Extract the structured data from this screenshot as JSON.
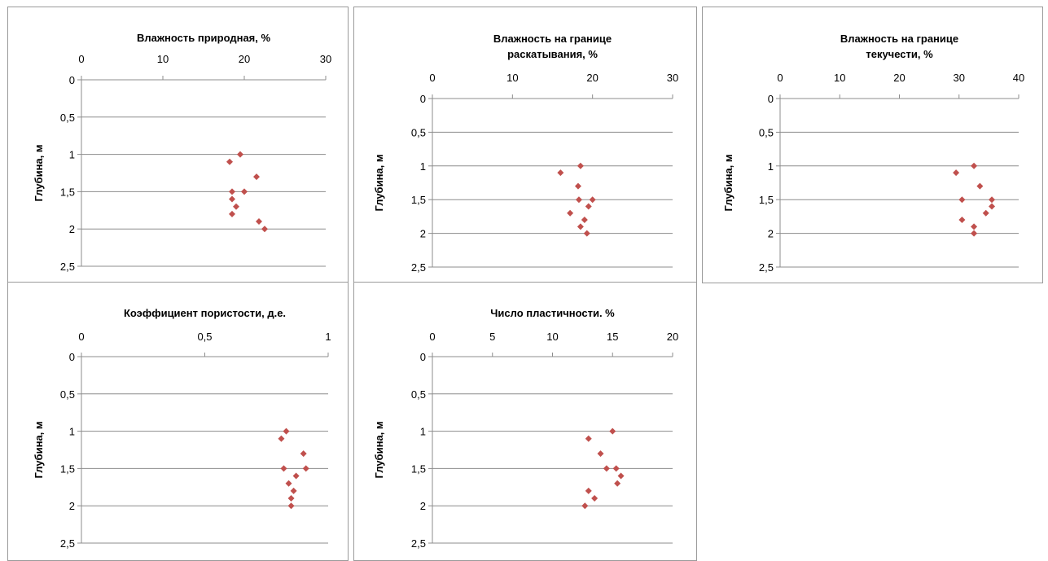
{
  "chart_data": [
    {
      "type": "scatter",
      "title": [
        "Влажность природная, %"
      ],
      "ylabel": "Глубина, м",
      "xlim": [
        0,
        30
      ],
      "xticks": [
        "0",
        "10",
        "20",
        "30"
      ],
      "ylim": [
        0,
        2.5
      ],
      "yticks": [
        "0",
        "0,5",
        "1",
        "1,5",
        "2",
        "2,5"
      ],
      "y_inverted": true,
      "x_axis_position": "top",
      "grid": "horizontal",
      "marker_color": "#c0504d",
      "points": [
        {
          "x": 19.5,
          "y": 1.0
        },
        {
          "x": 18.2,
          "y": 1.1
        },
        {
          "x": 21.5,
          "y": 1.3
        },
        {
          "x": 18.5,
          "y": 1.5
        },
        {
          "x": 20.0,
          "y": 1.5
        },
        {
          "x": 18.5,
          "y": 1.6
        },
        {
          "x": 19.0,
          "y": 1.7
        },
        {
          "x": 18.5,
          "y": 1.8
        },
        {
          "x": 21.8,
          "y": 1.9
        },
        {
          "x": 22.5,
          "y": 2.0
        }
      ]
    },
    {
      "type": "scatter",
      "title": [
        "Влажность на границе",
        "раскатывания,  %"
      ],
      "ylabel": "Глубина, м",
      "xlim": [
        0,
        30
      ],
      "xticks": [
        "0",
        "10",
        "20",
        "30"
      ],
      "ylim": [
        0,
        2.5
      ],
      "yticks": [
        "0",
        "0,5",
        "1",
        "1,5",
        "2",
        "2,5"
      ],
      "y_inverted": true,
      "x_axis_position": "top",
      "grid": "horizontal",
      "marker_color": "#c0504d",
      "points": [
        {
          "x": 18.5,
          "y": 1.0
        },
        {
          "x": 16.0,
          "y": 1.1
        },
        {
          "x": 18.2,
          "y": 1.3
        },
        {
          "x": 18.3,
          "y": 1.5
        },
        {
          "x": 20.0,
          "y": 1.5
        },
        {
          "x": 19.5,
          "y": 1.6
        },
        {
          "x": 17.2,
          "y": 1.7
        },
        {
          "x": 19.0,
          "y": 1.8
        },
        {
          "x": 18.5,
          "y": 1.9
        },
        {
          "x": 19.3,
          "y": 2.0
        }
      ]
    },
    {
      "type": "scatter",
      "title": [
        "Влажность на границе",
        "текучести, %"
      ],
      "ylabel": "Глубина, м",
      "xlim": [
        0,
        40
      ],
      "xticks": [
        "0",
        "10",
        "20",
        "30",
        "40"
      ],
      "ylim": [
        0,
        2.5
      ],
      "yticks": [
        "0",
        "0,5",
        "1",
        "1,5",
        "2",
        "2,5"
      ],
      "y_inverted": true,
      "x_axis_position": "top",
      "grid": "horizontal",
      "marker_color": "#c0504d",
      "points": [
        {
          "x": 32.5,
          "y": 1.0
        },
        {
          "x": 29.5,
          "y": 1.1
        },
        {
          "x": 33.5,
          "y": 1.3
        },
        {
          "x": 30.5,
          "y": 1.5
        },
        {
          "x": 35.5,
          "y": 1.5
        },
        {
          "x": 35.5,
          "y": 1.6
        },
        {
          "x": 34.5,
          "y": 1.7
        },
        {
          "x": 30.5,
          "y": 1.8
        },
        {
          "x": 32.5,
          "y": 1.9
        },
        {
          "x": 32.5,
          "y": 2.0
        }
      ]
    },
    {
      "type": "scatter",
      "title": [
        "Коэффициент пористости,  д.е."
      ],
      "ylabel": "Глубина, м",
      "xlim": [
        0,
        1
      ],
      "xticks": [
        "0",
        "0,5",
        "1"
      ],
      "ylim": [
        0,
        2.5
      ],
      "yticks": [
        "0",
        "0,5",
        "1",
        "1,5",
        "2",
        "2,5"
      ],
      "y_inverted": true,
      "x_axis_position": "top",
      "grid": "horizontal",
      "marker_color": "#c0504d",
      "points": [
        {
          "x": 0.83,
          "y": 1.0
        },
        {
          "x": 0.81,
          "y": 1.1
        },
        {
          "x": 0.9,
          "y": 1.3
        },
        {
          "x": 0.82,
          "y": 1.5
        },
        {
          "x": 0.91,
          "y": 1.5
        },
        {
          "x": 0.87,
          "y": 1.6
        },
        {
          "x": 0.84,
          "y": 1.7
        },
        {
          "x": 0.86,
          "y": 1.8
        },
        {
          "x": 0.85,
          "y": 1.9
        },
        {
          "x": 0.85,
          "y": 2.0
        }
      ]
    },
    {
      "type": "scatter",
      "title": [
        "Число пластичности.  %"
      ],
      "ylabel": "Глубина, м",
      "xlim": [
        0,
        20
      ],
      "xticks": [
        "0",
        "5",
        "10",
        "15",
        "20"
      ],
      "ylim": [
        0,
        2.5
      ],
      "yticks": [
        "0",
        "0,5",
        "1",
        "1,5",
        "2",
        "2,5"
      ],
      "y_inverted": true,
      "x_axis_position": "top",
      "grid": "horizontal",
      "marker_color": "#c0504d",
      "points": [
        {
          "x": 15.0,
          "y": 1.0
        },
        {
          "x": 13.0,
          "y": 1.1
        },
        {
          "x": 14.0,
          "y": 1.3
        },
        {
          "x": 14.5,
          "y": 1.5
        },
        {
          "x": 15.3,
          "y": 1.5
        },
        {
          "x": 15.7,
          "y": 1.6
        },
        {
          "x": 15.4,
          "y": 1.7
        },
        {
          "x": 13.0,
          "y": 1.8
        },
        {
          "x": 13.5,
          "y": 1.9
        },
        {
          "x": 12.7,
          "y": 2.0
        }
      ]
    }
  ]
}
